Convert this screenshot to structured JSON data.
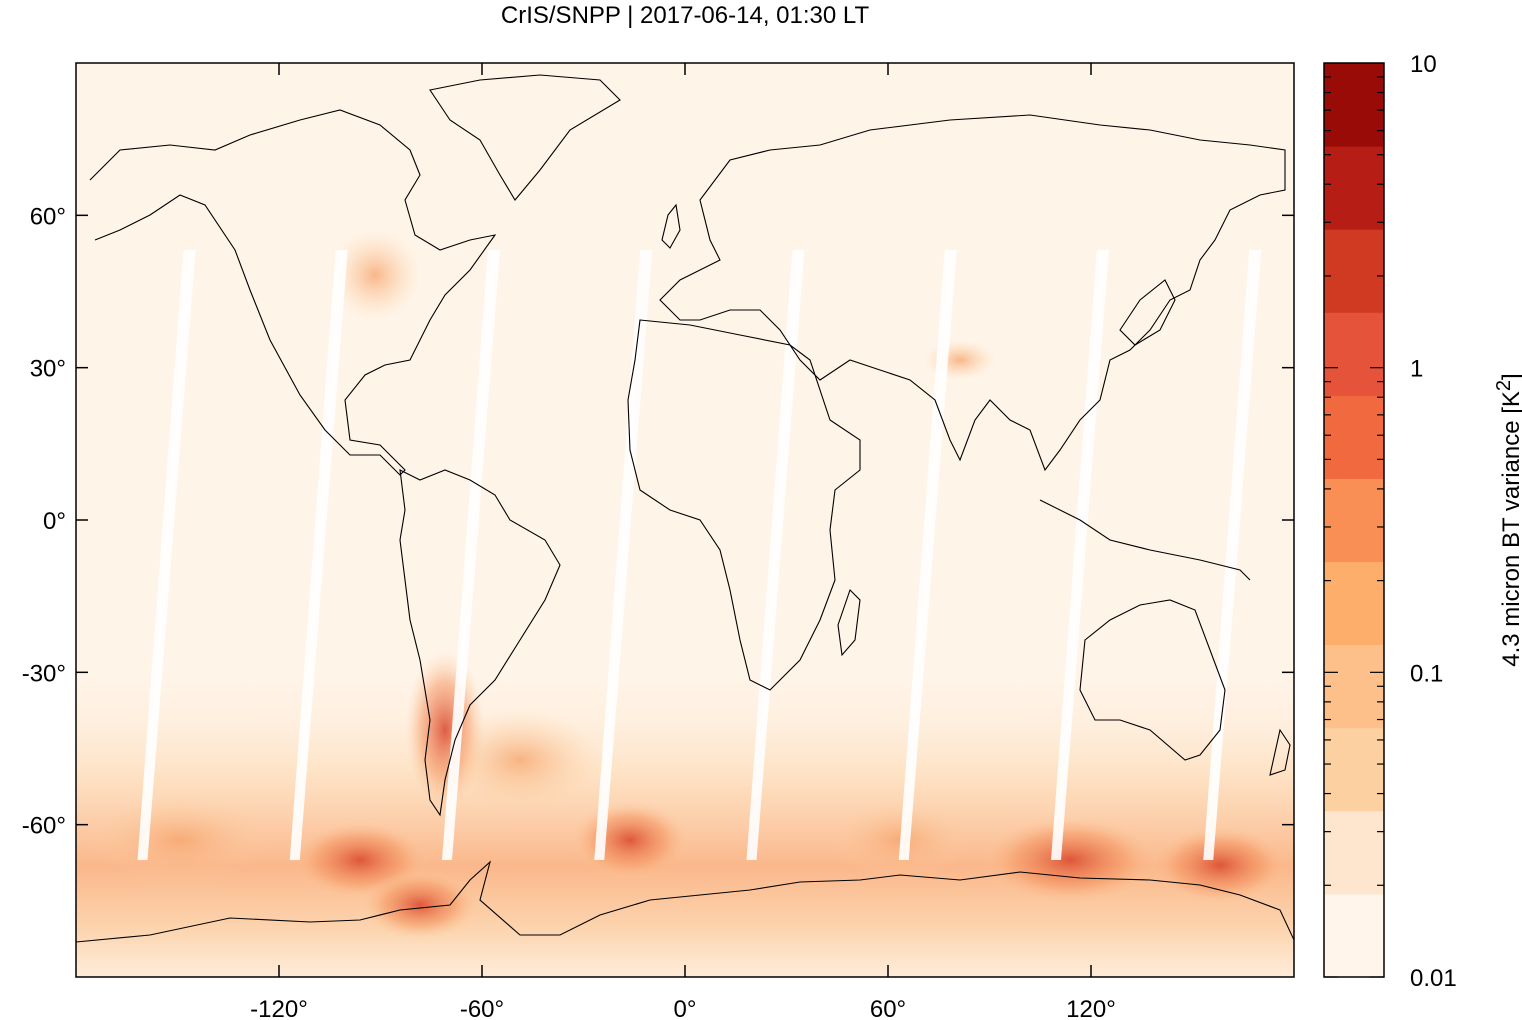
{
  "title": "CrIS/SNPP | 2017-06-14, 01:30 LT",
  "map": {
    "projection": "equirectangular",
    "lon_range": [
      -180,
      180
    ],
    "lat_range": [
      -90,
      90
    ],
    "x_ticks": [
      "-120°",
      "-60°",
      "0°",
      "60°",
      "120°"
    ],
    "x_tick_values": [
      -120,
      -60,
      0,
      60,
      120
    ],
    "y_ticks": [
      "60°",
      "30°",
      "0°",
      "-30°",
      "-60°"
    ],
    "y_tick_values": [
      60,
      30,
      0,
      -30,
      -60
    ],
    "coastlines": true,
    "swath_gaps": "white diagonal gaps between orbit swaths"
  },
  "colorbar": {
    "label_prefix": "4.3 micron BT variance [K",
    "label_sup": "2",
    "label_suffix": "]",
    "scale": "log",
    "range": [
      0.01,
      10
    ],
    "tick_labels": [
      "10",
      "1",
      "0.1",
      "0.01"
    ],
    "tick_values": [
      10,
      1,
      0.1,
      0.01
    ],
    "colors": [
      "#fff5eb",
      "#fee6ce",
      "#fdd0a2",
      "#fdc08a",
      "#fdae6b",
      "#f98f55",
      "#f16a3f",
      "#e5533a",
      "#d03a22",
      "#b61d14",
      "#980b07"
    ]
  }
}
